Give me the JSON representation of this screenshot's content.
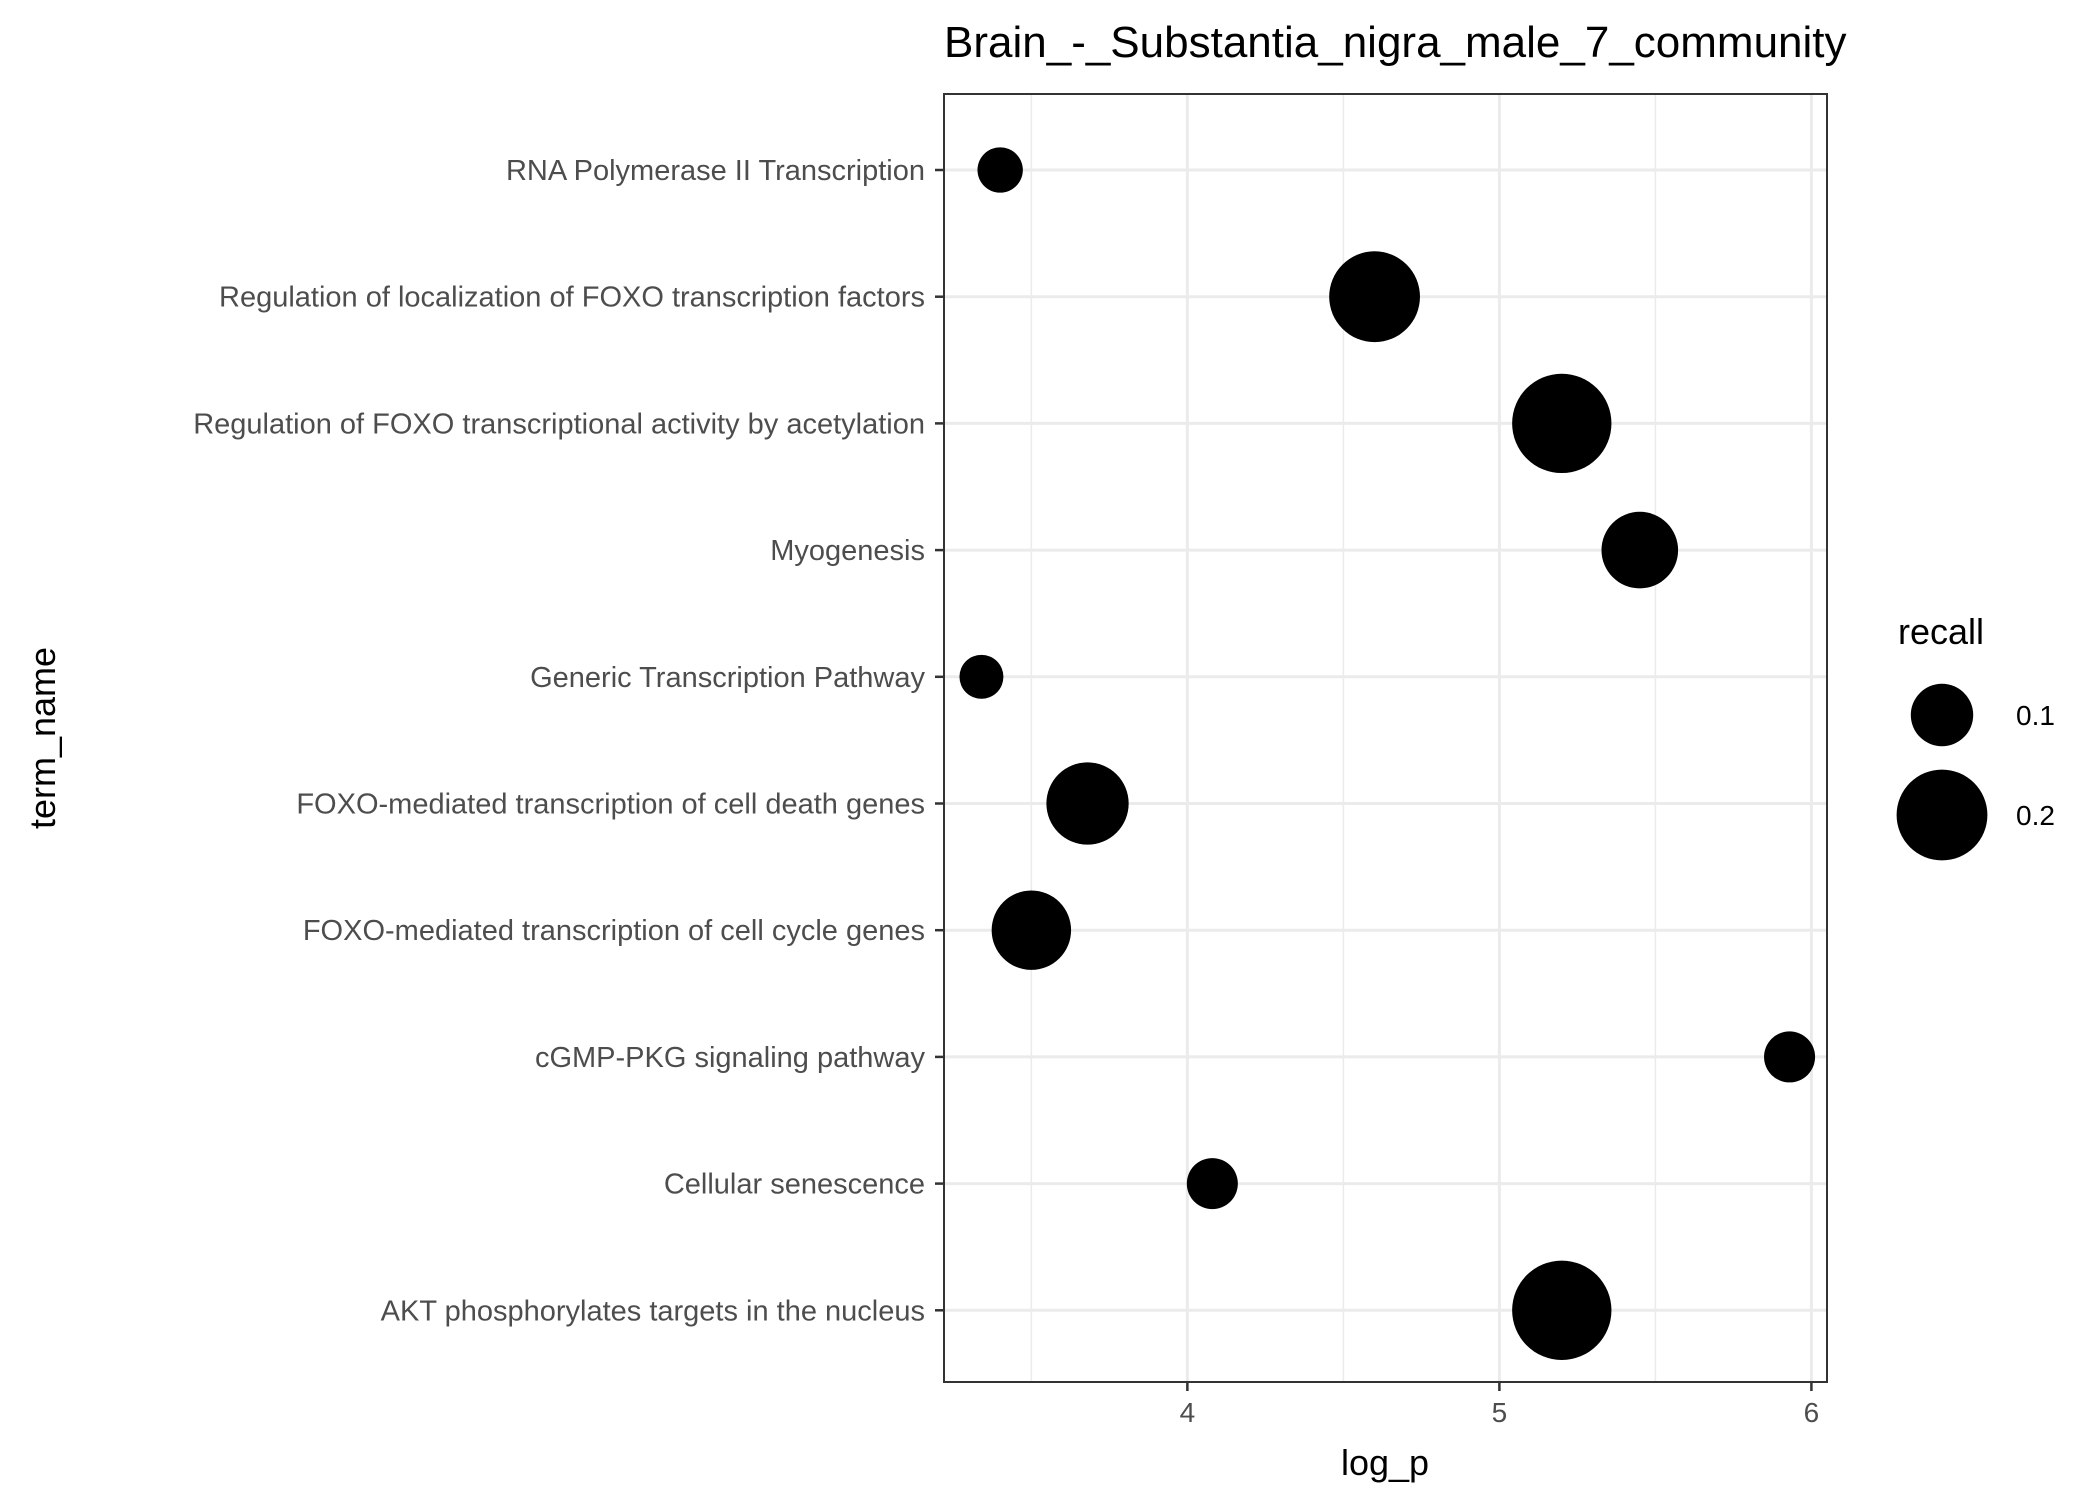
{
  "chart_data": {
    "type": "scatter",
    "title": "Brain_-_Substantia_nigra_male_7_community",
    "xlabel": "log_p",
    "ylabel": "term_name",
    "xlim": [
      3.22,
      6.05
    ],
    "xticks": [
      4,
      5,
      6
    ],
    "grid": true,
    "legend": {
      "title": "recall",
      "position": "right",
      "entries": [
        {
          "label": "0.1",
          "value": 0.1
        },
        {
          "label": "0.2",
          "value": 0.2
        }
      ]
    },
    "categories": [
      "RNA Polymerase II Transcription",
      "Regulation of localization of FOXO transcription factors",
      "Regulation of FOXO transcriptional activity by acetylation",
      "Myogenesis",
      "Generic Transcription Pathway",
      "FOXO-mediated transcription of cell death genes",
      "FOXO-mediated transcription of cell cycle genes",
      "cGMP-PKG signaling pathway",
      "Cellular senescence",
      "AKT phosphorylates targets in the nucleus"
    ],
    "points": [
      {
        "term": "RNA Polymerase II Transcription",
        "log_p": 3.4,
        "recall": 0.04
      },
      {
        "term": "Regulation of localization of FOXO transcription factors",
        "log_p": 4.6,
        "recall": 0.2
      },
      {
        "term": "Regulation of FOXO transcriptional activity by acetylation",
        "log_p": 5.2,
        "recall": 0.23
      },
      {
        "term": "Myogenesis",
        "log_p": 5.45,
        "recall": 0.15
      },
      {
        "term": "Generic Transcription Pathway",
        "log_p": 3.34,
        "recall": 0.035
      },
      {
        "term": "FOXO-mediated transcription of cell death genes",
        "log_p": 3.68,
        "recall": 0.17
      },
      {
        "term": "FOXO-mediated transcription of cell cycle genes",
        "log_p": 3.5,
        "recall": 0.16
      },
      {
        "term": "cGMP-PKG signaling pathway",
        "log_p": 5.93,
        "recall": 0.06
      },
      {
        "term": "Cellular senescence",
        "log_p": 4.08,
        "recall": 0.06
      },
      {
        "term": "AKT phosphorylates targets in the nucleus",
        "log_p": 5.2,
        "recall": 0.23
      }
    ],
    "colors": {
      "point": "#000000",
      "grid": "#ebebeb",
      "panel_border": "#333333",
      "text": "#4d4d4d"
    }
  }
}
